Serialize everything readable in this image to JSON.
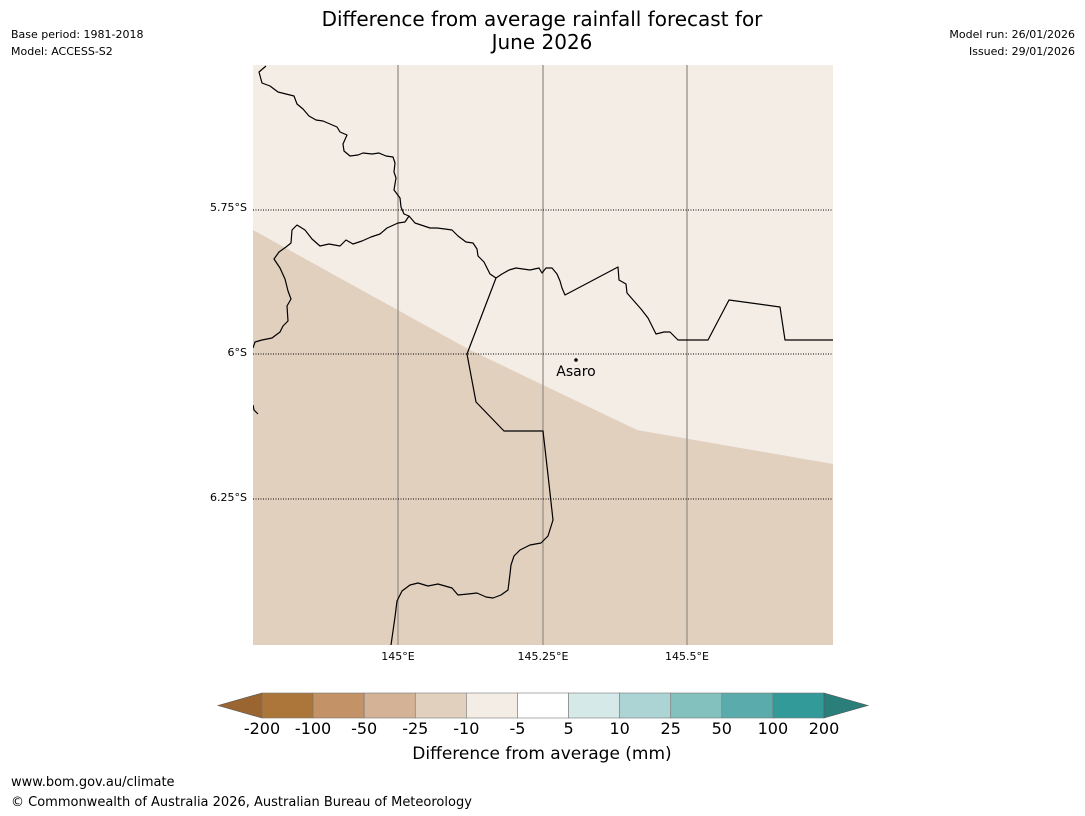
{
  "header": {
    "title_line1": "Difference from average rainfall forecast for",
    "title_line2": "June 2026",
    "base_period": "Base period: 1981-2018",
    "model": "Model: ACCESS-S2",
    "model_run": "Model run: 26/01/2026",
    "issued": "Issued: 29/01/2026"
  },
  "map": {
    "place_name": "Asaro",
    "lat_labels": [
      "5.75°S",
      "6°S",
      "6.25°S"
    ],
    "lon_labels": [
      "145°E",
      "145.25°E",
      "145.5°E"
    ],
    "colors": {
      "category_minus5_to_minus10": "#f4ede6",
      "category_minus10_to_minus25": "#e2d0bf"
    }
  },
  "colorbar": {
    "ticks": [
      "-200",
      "-100",
      "-50",
      "-25",
      "-10",
      "-5",
      "5",
      "10",
      "25",
      "50",
      "100",
      "200"
    ],
    "colors": [
      "#ac7539",
      "#c39367",
      "#d4b295",
      "#e2d0bf",
      "#f4ede6",
      "#ffffff",
      "#d6e9e9",
      "#add4d4",
      "#82c1bd",
      "#5aacac",
      "#329a98"
    ],
    "under_color": "#9a6530",
    "over_color": "#2b7f7b",
    "label": "Difference from average (mm)"
  },
  "footer": {
    "url": "www.bom.gov.au/climate",
    "copyright": "© Commonwealth of Australia 2026, Australian Bureau of Meteorology"
  }
}
